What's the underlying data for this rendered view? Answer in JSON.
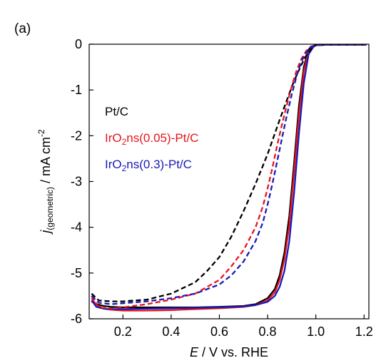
{
  "panel_label": "(a)",
  "chart_data": {
    "type": "line",
    "title": "",
    "xlabel_italic": "E",
    "xlabel_rest": " / V vs. RHE",
    "ylabel_italic": "j",
    "ylabel_sub": "(geometric)",
    "ylabel_rest": " / mA cm",
    "ylabel_sup": "-2",
    "xlim": [
      0.06,
      1.22
    ],
    "ylim": [
      -6,
      0
    ],
    "x_ticks": [
      0.2,
      0.4,
      0.6,
      0.8,
      1.0,
      1.2
    ],
    "x_tick_labels": [
      "0.2",
      "0.4",
      "0.6",
      "0.8",
      "1.0",
      "1.2"
    ],
    "y_ticks": [
      0,
      -1,
      -2,
      -3,
      -4,
      -5,
      -6
    ],
    "y_tick_labels": [
      "0",
      "-1",
      "-2",
      "-3",
      "-4",
      "-5",
      "-6"
    ],
    "grid": false,
    "legend_position": "top-left",
    "legend": [
      {
        "parts": [
          "Pt/C"
        ],
        "color": "#000000"
      },
      {
        "parts": [
          "IrO",
          "2",
          "ns(0.05)-Pt/C"
        ],
        "color": "#e8141c"
      },
      {
        "parts": [
          "IrO",
          "2",
          "ns(0.3)-Pt/C"
        ],
        "color": "#1a1ab8"
      }
    ],
    "series": [
      {
        "color": "#000000",
        "dash": "solid",
        "x": [
          0.07,
          0.09,
          0.12,
          0.15,
          0.2,
          0.3,
          0.4,
          0.5,
          0.6,
          0.7,
          0.75,
          0.8,
          0.83,
          0.85,
          0.87,
          0.89,
          0.91,
          0.93,
          0.95,
          0.97,
          0.98,
          1.0,
          1.05,
          1.1,
          1.15,
          1.21
        ],
        "y": [
          -5.62,
          -5.68,
          -5.72,
          -5.74,
          -5.75,
          -5.75,
          -5.75,
          -5.75,
          -5.74,
          -5.72,
          -5.68,
          -5.55,
          -5.35,
          -5.05,
          -4.55,
          -3.75,
          -2.6,
          -1.35,
          -0.5,
          -0.12,
          -0.05,
          -0.02,
          -0.01,
          -0.01,
          -0.01,
          -0.01
        ]
      },
      {
        "color": "#e8141c",
        "dash": "solid",
        "x": [
          0.07,
          0.09,
          0.12,
          0.15,
          0.2,
          0.3,
          0.4,
          0.5,
          0.6,
          0.7,
          0.75,
          0.8,
          0.83,
          0.85,
          0.87,
          0.89,
          0.91,
          0.93,
          0.95,
          0.97,
          0.99,
          1.0,
          1.05,
          1.1,
          1.15,
          1.21
        ],
        "y": [
          -5.55,
          -5.7,
          -5.78,
          -5.8,
          -5.82,
          -5.82,
          -5.81,
          -5.79,
          -5.77,
          -5.74,
          -5.7,
          -5.6,
          -5.42,
          -5.15,
          -4.7,
          -3.95,
          -2.8,
          -1.55,
          -0.6,
          -0.15,
          -0.05,
          -0.02,
          -0.01,
          -0.01,
          -0.01,
          -0.01
        ]
      },
      {
        "color": "#1a1ab8",
        "dash": "solid",
        "x": [
          0.07,
          0.09,
          0.12,
          0.15,
          0.2,
          0.3,
          0.4,
          0.5,
          0.6,
          0.7,
          0.75,
          0.8,
          0.83,
          0.85,
          0.87,
          0.89,
          0.91,
          0.93,
          0.95,
          0.97,
          0.99,
          1.0,
          1.05,
          1.1,
          1.15,
          1.21
        ],
        "y": [
          -5.6,
          -5.74,
          -5.78,
          -5.79,
          -5.79,
          -5.78,
          -5.77,
          -5.76,
          -5.75,
          -5.73,
          -5.7,
          -5.63,
          -5.5,
          -5.3,
          -4.95,
          -4.3,
          -3.25,
          -1.95,
          -0.85,
          -0.22,
          -0.06,
          -0.02,
          -0.01,
          -0.01,
          -0.01,
          -0.01
        ]
      },
      {
        "color": "#000000",
        "dash": "dashed",
        "x": [
          0.07,
          0.1,
          0.15,
          0.2,
          0.3,
          0.4,
          0.5,
          0.55,
          0.6,
          0.65,
          0.7,
          0.75,
          0.8,
          0.85,
          0.88,
          0.91,
          0.94,
          0.96,
          0.98,
          0.99,
          1.0,
          1.05,
          1.1,
          1.15,
          1.21
        ],
        "y": [
          -5.45,
          -5.6,
          -5.62,
          -5.62,
          -5.58,
          -5.45,
          -5.2,
          -4.95,
          -4.65,
          -4.2,
          -3.65,
          -3.05,
          -2.4,
          -1.65,
          -1.22,
          -0.8,
          -0.45,
          -0.25,
          -0.1,
          -0.05,
          -0.02,
          -0.01,
          -0.01,
          -0.01,
          -0.01
        ]
      },
      {
        "color": "#e8141c",
        "dash": "dashed",
        "x": [
          0.07,
          0.1,
          0.15,
          0.2,
          0.3,
          0.4,
          0.5,
          0.6,
          0.65,
          0.7,
          0.75,
          0.78,
          0.8,
          0.82,
          0.84,
          0.86,
          0.88,
          0.9,
          0.92,
          0.94,
          0.96,
          0.98,
          1.0,
          1.05,
          1.1,
          1.15,
          1.21
        ],
        "y": [
          -5.5,
          -5.75,
          -5.78,
          -5.75,
          -5.68,
          -5.58,
          -5.45,
          -5.15,
          -4.85,
          -4.5,
          -4.0,
          -3.55,
          -3.15,
          -2.7,
          -2.2,
          -1.75,
          -1.32,
          -0.92,
          -0.58,
          -0.32,
          -0.15,
          -0.05,
          -0.02,
          -0.01,
          -0.01,
          -0.01,
          -0.01
        ]
      },
      {
        "color": "#1a1ab8",
        "dash": "dashed",
        "x": [
          0.07,
          0.1,
          0.15,
          0.2,
          0.3,
          0.4,
          0.5,
          0.6,
          0.65,
          0.7,
          0.75,
          0.78,
          0.8,
          0.82,
          0.84,
          0.86,
          0.88,
          0.9,
          0.92,
          0.94,
          0.96,
          0.98,
          1.0,
          1.05,
          1.1,
          1.15,
          1.21
        ],
        "y": [
          -5.5,
          -5.65,
          -5.68,
          -5.66,
          -5.62,
          -5.55,
          -5.45,
          -5.25,
          -5.05,
          -4.75,
          -4.3,
          -3.9,
          -3.5,
          -3.05,
          -2.55,
          -2.05,
          -1.55,
          -1.1,
          -0.7,
          -0.38,
          -0.18,
          -0.06,
          -0.02,
          -0.01,
          -0.01,
          -0.01,
          -0.01
        ]
      }
    ]
  }
}
